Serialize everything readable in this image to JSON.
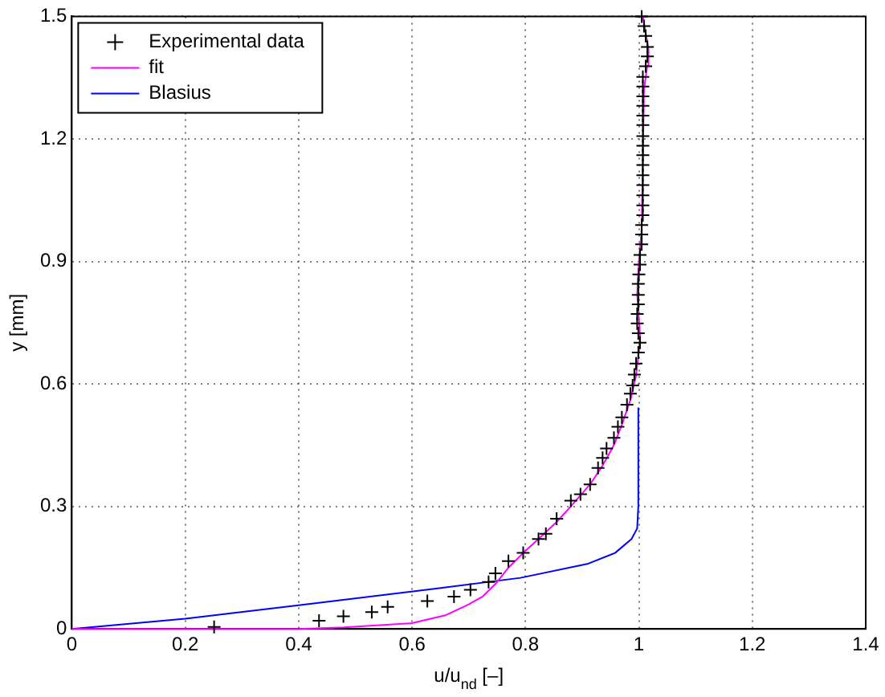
{
  "chart_data": {
    "type": "scatter",
    "xlabel": "u/u$_{nd}$ [–]",
    "ylabel": "y [mm]",
    "xlim": [
      0,
      1.4
    ],
    "xticks": [
      0,
      0.2,
      0.4,
      0.6,
      0.8,
      1,
      1.2,
      1.4
    ],
    "ylim": [
      0,
      1.5
    ],
    "yticks": [
      0,
      0.3,
      0.6,
      0.9,
      1.2,
      1.5
    ],
    "grid": true,
    "legend": "top left",
    "series": [
      {
        "name": "Experimental data",
        "marker": "cross",
        "color": "#000000",
        "x": [
          0.251,
          0.436,
          0.479,
          0.529,
          0.557,
          0.627,
          0.674,
          0.703,
          0.735,
          0.747,
          0.77,
          0.796,
          0.823,
          0.836,
          0.855,
          0.88,
          0.897,
          0.914,
          0.928,
          0.936,
          0.943,
          0.956,
          0.963,
          0.97,
          0.979,
          0.985,
          0.989,
          0.992,
          0.995,
          0.999,
          1.002,
          0.999,
          0.997,
          0.997,
          0.999,
          0.999,
          0.999,
          1.0,
          1.002,
          1.002,
          1.005,
          1.005,
          1.005,
          1.007,
          1.007,
          1.007,
          1.007,
          1.007,
          1.007,
          1.007,
          1.007,
          1.007,
          1.007,
          1.007,
          1.007,
          1.007,
          1.007,
          1.007,
          1.012,
          1.015,
          1.015,
          1.012,
          1.009,
          1.005
        ],
        "values": [
          0.005,
          0.02,
          0.031,
          0.041,
          0.054,
          0.068,
          0.079,
          0.096,
          0.115,
          0.136,
          0.166,
          0.186,
          0.22,
          0.233,
          0.27,
          0.314,
          0.33,
          0.354,
          0.394,
          0.419,
          0.442,
          0.468,
          0.495,
          0.518,
          0.549,
          0.576,
          0.596,
          0.623,
          0.65,
          0.677,
          0.701,
          0.724,
          0.748,
          0.771,
          0.795,
          0.818,
          0.845,
          0.868,
          0.892,
          0.916,
          0.942,
          0.966,
          0.989,
          1.013,
          1.037,
          1.062,
          1.087,
          1.111,
          1.136,
          1.16,
          1.183,
          1.207,
          1.234,
          1.257,
          1.281,
          1.304,
          1.328,
          1.352,
          1.378,
          1.402,
          1.425,
          1.452,
          1.476,
          1.5
        ]
      },
      {
        "name": "fit",
        "type": "line",
        "color": "#ff00ff",
        "x": [
          0,
          0.4,
          0.48,
          0.6,
          0.66,
          0.7,
          0.725,
          0.747,
          0.77,
          0.796,
          0.823,
          0.855,
          0.88,
          0.914,
          0.936,
          0.956,
          0.97,
          0.985,
          0.995,
          1.0,
          1.002,
          1.0,
          0.997,
          1.0,
          1.005,
          1.009,
          1.015,
          1.017,
          1.012,
          1.007
        ],
        "values": [
          0,
          0,
          0.004,
          0.014,
          0.034,
          0.06,
          0.08,
          0.11,
          0.15,
          0.186,
          0.22,
          0.262,
          0.3,
          0.354,
          0.4,
          0.45,
          0.5,
          0.56,
          0.62,
          0.68,
          0.72,
          0.76,
          0.82,
          0.9,
          0.98,
          1.32,
          1.38,
          1.42,
          1.46,
          1.5
        ]
      },
      {
        "name": "Blasius",
        "type": "line",
        "color": "#0000ff",
        "x": [
          0,
          0.2,
          0.4,
          0.645,
          0.791,
          0.909,
          0.958,
          0.987,
          0.997,
          0.999,
          0.999
        ],
        "values": [
          0,
          0.025,
          0.058,
          0.099,
          0.125,
          0.159,
          0.186,
          0.22,
          0.246,
          0.3,
          0.542
        ]
      }
    ]
  }
}
